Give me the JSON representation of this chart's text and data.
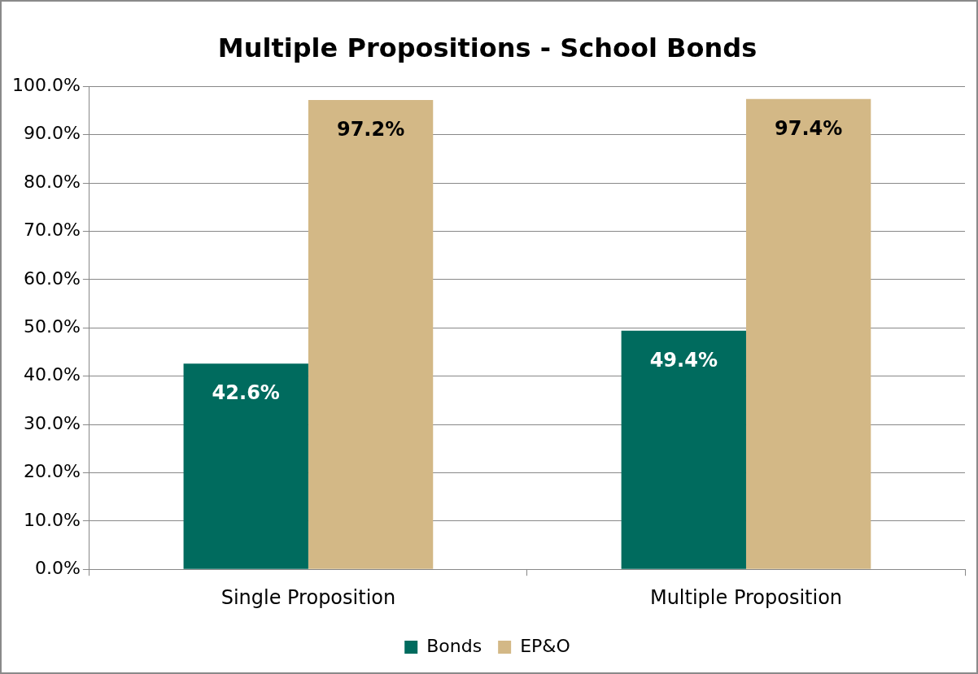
{
  "chart_data": {
    "type": "bar",
    "title": "Multiple Propositions - School Bonds",
    "categories": [
      "Single Proposition",
      "Multiple Proposition"
    ],
    "series": [
      {
        "name": "Bonds",
        "color": "#006b5e",
        "values": [
          42.6,
          49.4
        ],
        "value_labels": [
          "42.6%",
          "49.4%"
        ]
      },
      {
        "name": "EP&O",
        "color": "#d3b886",
        "values": [
          97.2,
          97.4
        ],
        "value_labels": [
          "97.2%",
          "97.4%"
        ]
      }
    ],
    "ylim": [
      0,
      100
    ],
    "yticks": [
      {
        "value": 0,
        "label": "0.0%"
      },
      {
        "value": 10,
        "label": "10.0%"
      },
      {
        "value": 20,
        "label": "20.0%"
      },
      {
        "value": 30,
        "label": "30.0%"
      },
      {
        "value": 40,
        "label": "40.0%"
      },
      {
        "value": 50,
        "label": "50.0%"
      },
      {
        "value": 60,
        "label": "60.0%"
      },
      {
        "value": 70,
        "label": "70.0%"
      },
      {
        "value": 80,
        "label": "80.0%"
      },
      {
        "value": 90,
        "label": "90.0%"
      },
      {
        "value": 100,
        "label": "100.0%"
      }
    ],
    "grid": "y",
    "legend": "bottom"
  }
}
